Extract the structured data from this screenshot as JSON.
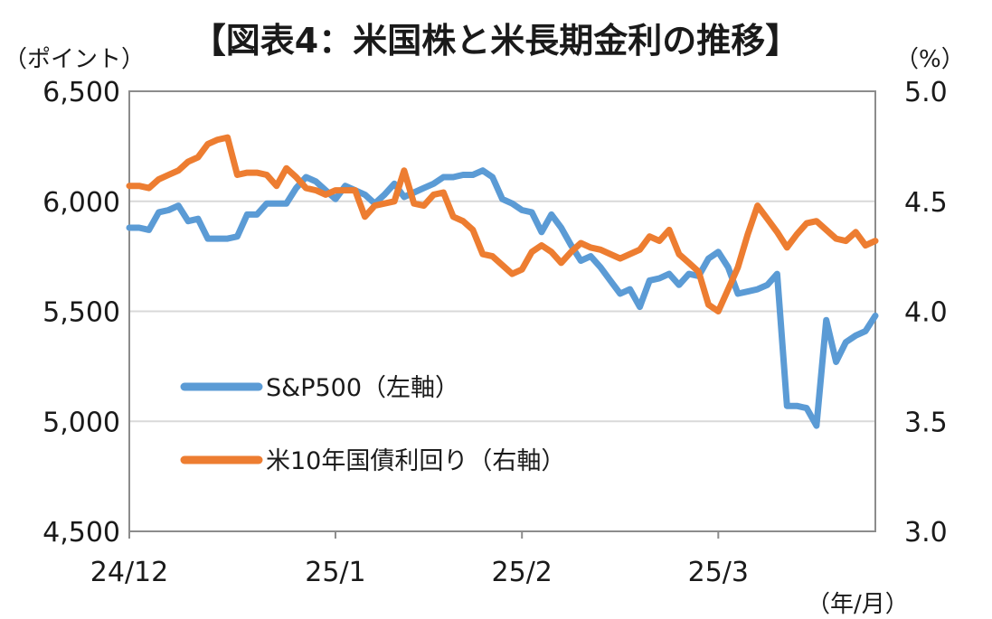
{
  "chart_data": {
    "type": "line",
    "title": "【図表4：米国株と米長期金利の推移】",
    "y_left_unit": "（ポイント）",
    "y_right_unit": "（%）",
    "x_unit": "（年/月）",
    "x_tick_labels": [
      "24/12",
      "25/1",
      "25/2",
      "25/3"
    ],
    "y_left_ticks": [
      "6,500",
      "6,000",
      "5,500",
      "5,000",
      "4,500"
    ],
    "y_right_ticks": [
      "5.0",
      "4.5",
      "4.0",
      "3.5",
      "3.0"
    ],
    "y_left_lim": [
      4500,
      6500
    ],
    "y_right_lim": [
      3.0,
      5.0
    ],
    "x_lim": [
      0,
      76
    ],
    "x_tick_positions": [
      0,
      21,
      40,
      60
    ],
    "grid": true,
    "legend_position": "lower-left",
    "series": [
      {
        "name": "S&P500（左軸）",
        "axis": "left",
        "color": "#5b9bd5",
        "x": [
          0,
          1,
          2,
          3,
          4,
          5,
          6,
          7,
          8,
          9,
          10,
          11,
          12,
          13,
          14,
          15,
          16,
          17,
          18,
          19,
          20,
          21,
          22,
          23,
          24,
          25,
          26,
          27,
          28,
          29,
          30,
          31,
          32,
          33,
          34,
          35,
          36,
          37,
          38,
          39,
          40,
          41,
          42,
          43,
          44,
          45,
          46,
          47,
          48,
          49,
          50,
          51,
          52,
          53,
          54,
          55,
          56,
          57,
          58,
          59,
          60,
          61,
          62,
          63,
          64,
          65,
          66,
          67,
          68,
          69,
          70,
          71,
          72,
          73,
          74,
          75,
          76
        ],
        "values": [
          5880,
          5880,
          5870,
          5950,
          5960,
          5980,
          5910,
          5920,
          5830,
          5830,
          5830,
          5840,
          5940,
          5940,
          5990,
          5990,
          5990,
          6060,
          6110,
          6090,
          6050,
          6010,
          6070,
          6050,
          6030,
          5990,
          6030,
          6080,
          6020,
          6040,
          6060,
          6080,
          6110,
          6110,
          6120,
          6120,
          6140,
          6110,
          6010,
          5990,
          5960,
          5950,
          5860,
          5940,
          5880,
          5800,
          5730,
          5750,
          5700,
          5640,
          5580,
          5600,
          5520,
          5640,
          5650,
          5670,
          5620,
          5670,
          5660,
          5740,
          5770,
          5700,
          5580,
          5590,
          5600,
          5620,
          5670,
          5070,
          5070,
          5060,
          4980,
          5460,
          5270,
          5360,
          5390,
          5410,
          5480
        ]
      },
      {
        "name": "米10年国債利回り（右軸）",
        "axis": "right",
        "color": "#ed7d31",
        "x": [
          0,
          1,
          2,
          3,
          4,
          5,
          6,
          7,
          8,
          9,
          10,
          11,
          12,
          13,
          14,
          15,
          16,
          17,
          18,
          19,
          20,
          21,
          22,
          23,
          24,
          25,
          26,
          27,
          28,
          29,
          30,
          31,
          32,
          33,
          34,
          35,
          36,
          37,
          38,
          39,
          40,
          41,
          42,
          43,
          44,
          45,
          46,
          47,
          48,
          49,
          50,
          51,
          52,
          53,
          54,
          55,
          56,
          57,
          58,
          59,
          60,
          61,
          62,
          63,
          64,
          65,
          66,
          67,
          68,
          69,
          70,
          71,
          72,
          73,
          74,
          75,
          76
        ],
        "values": [
          4.57,
          4.57,
          4.56,
          4.6,
          4.62,
          4.64,
          4.68,
          4.7,
          4.76,
          4.78,
          4.79,
          4.62,
          4.63,
          4.63,
          4.62,
          4.57,
          4.65,
          4.61,
          4.56,
          4.55,
          4.53,
          4.55,
          4.55,
          4.55,
          4.43,
          4.48,
          4.49,
          4.5,
          4.64,
          4.49,
          4.48,
          4.53,
          4.54,
          4.43,
          4.41,
          4.37,
          4.26,
          4.25,
          4.21,
          4.17,
          4.19,
          4.27,
          4.3,
          4.27,
          4.22,
          4.27,
          4.31,
          4.29,
          4.28,
          4.26,
          4.24,
          4.26,
          4.28,
          4.34,
          4.32,
          4.37,
          4.26,
          4.22,
          4.18,
          4.03,
          4.0,
          4.1,
          4.2,
          4.35,
          4.48,
          4.42,
          4.36,
          4.29,
          4.35,
          4.4,
          4.41,
          4.37,
          4.33,
          4.32,
          4.36,
          4.3,
          4.32
        ]
      }
    ]
  }
}
